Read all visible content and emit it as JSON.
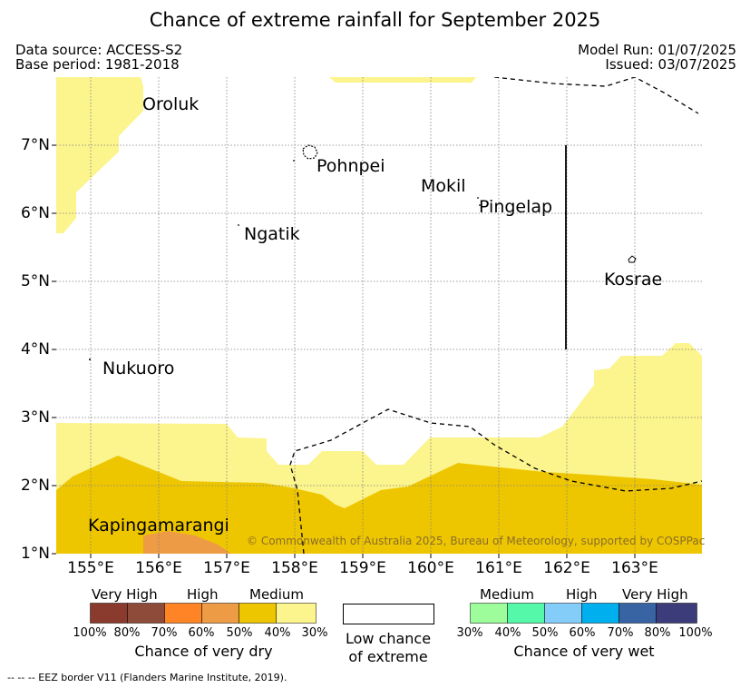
{
  "title": "Chance of extreme rainfall for September 2025",
  "meta": {
    "data_source": "Data source: ACCESS-S2",
    "base_period": "Base period: 1981-2018",
    "model_run": "Model Run: 01/07/2025",
    "issued": "Issued: 03/07/2025"
  },
  "axes": {
    "lat_labels": [
      "7°N",
      "6°N",
      "5°N",
      "4°N",
      "3°N",
      "2°N",
      "1°N"
    ],
    "lon_labels": [
      "155°E",
      "156°E",
      "157°E",
      "158°E",
      "159°E",
      "160°E",
      "161°E",
      "162°E",
      "163°E"
    ]
  },
  "places": {
    "oroluk": "Oroluk",
    "pohnpei": "Pohnpei",
    "mokil": "Mokil",
    "pingelap": "Pingelap",
    "ngatik": "Ngatik",
    "kosrae": "Kosrae",
    "nukuoro": "Nukuoro",
    "kapingamarangi": "Kapingamarangi"
  },
  "copyright": "© Commonwealth of Australia 2025, Bureau of Meteorology, supported by COSPPac",
  "legend": {
    "dry": {
      "headers": [
        "Very High",
        "High",
        "Medium"
      ],
      "ticks": [
        "100%",
        "80%",
        "70%",
        "60%",
        "50%",
        "40%",
        "30%"
      ],
      "colors": [
        "#8b3a2e",
        "#8e4b3a",
        "#ff8426",
        "#ed9b45",
        "#eec600",
        "#fcf48c"
      ],
      "caption": "Chance of very dry"
    },
    "low": {
      "caption_line1": "Low chance",
      "caption_line2": "of extreme"
    },
    "wet": {
      "headers": [
        "Medium",
        "High",
        "Very High"
      ],
      "ticks": [
        "30%",
        "40%",
        "50%",
        "60%",
        "70%",
        "80%",
        "100%"
      ],
      "colors": [
        "#9cfd9a",
        "#54f8a8",
        "#85cdf9",
        "#00b0ee",
        "#3864a4",
        "#3c3c7a"
      ],
      "caption": "Chance of very wet"
    }
  },
  "eez_note": "-- -- -- EEZ border V11 (Flanders Marine Institute, 2019)."
}
